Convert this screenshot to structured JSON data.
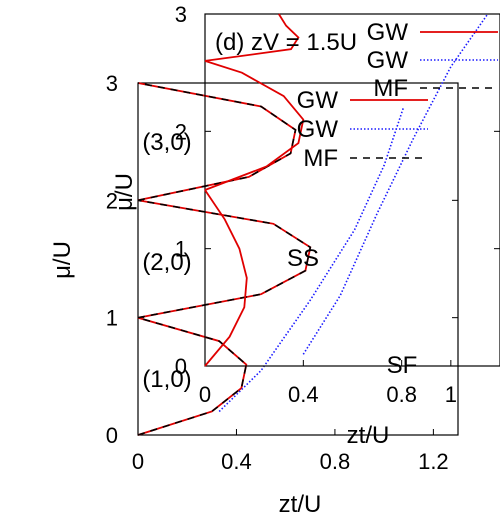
{
  "chart_data": [
    {
      "type": "line",
      "panel": "outer",
      "xlabel": "zt/U",
      "ylabel": "μ/U",
      "xlim": [
        0,
        1.3
      ],
      "ylim": [
        0,
        3
      ],
      "xticks": [
        "0",
        "0.4",
        "0.8",
        "1.2"
      ],
      "yticks": [
        "0",
        "1",
        "2",
        "3"
      ],
      "region_labels": [
        "(1,0)",
        "(2,0)",
        "(3,0)",
        "SS"
      ],
      "series": [
        {
          "name": "GW",
          "style": "solid red",
          "lobes": [
            {
              "mu": [
                0,
                0.2,
                0.4,
                0.6,
                0.8,
                1.0
              ],
              "zt": [
                0,
                0.3,
                0.42,
                0.44,
                0.33,
                0
              ]
            },
            {
              "mu": [
                1.0,
                1.2,
                1.4,
                1.6,
                1.8,
                2.0
              ],
              "zt": [
                0,
                0.5,
                0.68,
                0.7,
                0.55,
                0
              ]
            },
            {
              "mu": [
                2.0,
                2.2,
                2.4,
                2.6,
                2.8,
                3.0
              ],
              "zt": [
                0,
                0.45,
                0.62,
                0.64,
                0.5,
                0
              ]
            }
          ]
        },
        {
          "name": "GW",
          "style": "dotted blue",
          "x": [
            0.33,
            0.5,
            0.7,
            0.88,
            1.0,
            1.08
          ],
          "y": [
            0.2,
            0.55,
            1.15,
            1.75,
            2.3,
            2.8
          ]
        },
        {
          "name": "MF",
          "style": "dashed black",
          "lobes": [
            {
              "mu": [
                0,
                0.2,
                0.4,
                0.6,
                0.8,
                1.0
              ],
              "zt": [
                0,
                0.3,
                0.42,
                0.44,
                0.33,
                0
              ]
            },
            {
              "mu": [
                1.0,
                1.2,
                1.4,
                1.6,
                1.8,
                2.0
              ],
              "zt": [
                0,
                0.5,
                0.68,
                0.7,
                0.55,
                0
              ]
            },
            {
              "mu": [
                2.0,
                2.2,
                2.4,
                2.6,
                2.8,
                3.0
              ],
              "zt": [
                0,
                0.45,
                0.62,
                0.64,
                0.5,
                0
              ]
            }
          ]
        }
      ]
    },
    {
      "type": "line",
      "panel": "inset",
      "title": "(d) zV = 1.5U",
      "xlabel": "zt/U",
      "ylabel": "μ/U",
      "xlim": [
        0,
        1.2
      ],
      "ylim": [
        0,
        3
      ],
      "xticks": [
        "0",
        "0.4",
        "0.8",
        "1"
      ],
      "yticks": [
        "0",
        "1",
        "2",
        "3"
      ],
      "region_labels": [
        "SF"
      ],
      "series": [
        {
          "name": "GW",
          "style": "solid red",
          "lobes": [
            {
              "mu": [
                0,
                0.25,
                0.5,
                0.75,
                1.0,
                1.25,
                1.5
              ],
              "zt": [
                0,
                0.1,
                0.16,
                0.17,
                0.14,
                0.08,
                0
              ]
            },
            {
              "mu": [
                1.5,
                1.7,
                1.9,
                2.1,
                2.3,
                2.5,
                2.6
              ],
              "zt": [
                0,
                0.25,
                0.38,
                0.4,
                0.32,
                0.15,
                0
              ]
            },
            {
              "mu": [
                2.6,
                2.7,
                2.8,
                2.9,
                3.0
              ],
              "zt": [
                0,
                0.35,
                0.38,
                0.33,
                0.3
              ]
            }
          ]
        },
        {
          "name": "GW",
          "style": "dotted blue",
          "x": [
            0.4,
            0.55,
            0.7,
            0.85,
            1.0,
            1.15
          ],
          "y": [
            0.1,
            0.6,
            1.3,
            1.95,
            2.55,
            3.0
          ]
        },
        {
          "name": "MF",
          "style": "dashed black",
          "lobes": []
        }
      ]
    }
  ]
}
